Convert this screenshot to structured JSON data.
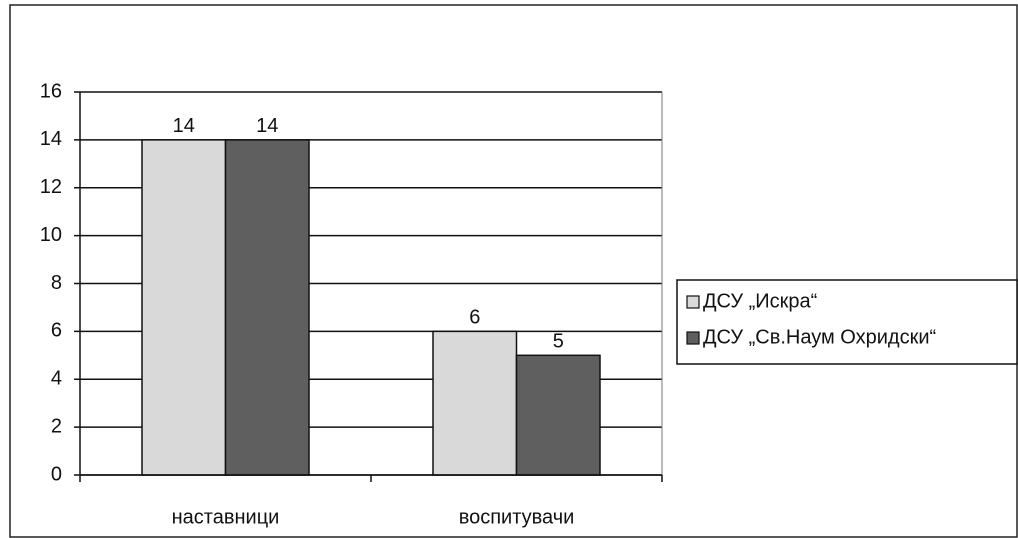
{
  "chart_data": {
    "type": "bar",
    "categories": [
      "наставници",
      "воспитувачи"
    ],
    "series": [
      {
        "name": "ДСУ „Искра“",
        "color": "#d9d9d9",
        "values": [
          14,
          6
        ]
      },
      {
        "name": "ДСУ „Св.Наум Охридски“",
        "color": "#5f5f5f",
        "values": [
          14,
          5
        ]
      }
    ],
    "ylim": [
      0,
      16
    ],
    "yticks": [
      0,
      2,
      4,
      6,
      8,
      10,
      12,
      14,
      16
    ],
    "grid": true,
    "legend": "right"
  }
}
